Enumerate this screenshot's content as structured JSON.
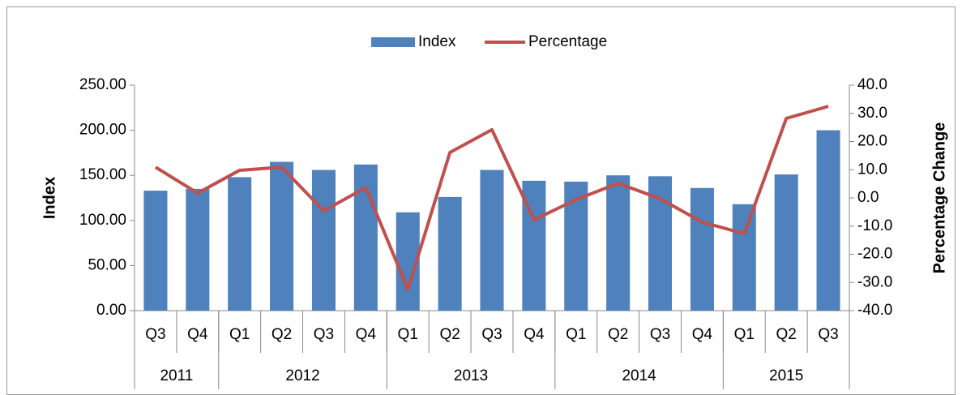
{
  "chart_data": {
    "type": "bar-line",
    "y_label": "Index",
    "y2_label": "Percentage Change",
    "categories": [
      "Q3",
      "Q4",
      "Q1",
      "Q2",
      "Q3",
      "Q4",
      "Q1",
      "Q2",
      "Q3",
      "Q4",
      "Q1",
      "Q2",
      "Q3",
      "Q4",
      "Q1",
      "Q2",
      "Q3"
    ],
    "groups": [
      {
        "label": "2011",
        "count": 2
      },
      {
        "label": "2012",
        "count": 4
      },
      {
        "label": "2013",
        "count": 4
      },
      {
        "label": "2014",
        "count": 4
      },
      {
        "label": "2015",
        "count": 3
      }
    ],
    "series": [
      {
        "name": "Index",
        "type": "bar",
        "color": "#4f81bd",
        "values": [
          133,
          135,
          148,
          165,
          156,
          162,
          109,
          126,
          156,
          144,
          143,
          150,
          149,
          136,
          118,
          151,
          200
        ]
      },
      {
        "name": "Percentage",
        "type": "line",
        "axis": "y2",
        "color": "#c0504d",
        "values": [
          10.9,
          1.7,
          9.8,
          10.9,
          -4.6,
          3.7,
          -32.5,
          16.1,
          24.2,
          -7.8,
          -0.6,
          5.2,
          -0.3,
          -8.6,
          -12.7,
          28.2,
          32.5
        ]
      }
    ],
    "ylim": [
      0,
      250
    ],
    "yticks": [
      {
        "value": 0,
        "label": "0.00"
      },
      {
        "value": 50,
        "label": "50.00"
      },
      {
        "value": 100,
        "label": "100.00"
      },
      {
        "value": 150,
        "label": "150.00"
      },
      {
        "value": 200,
        "label": "200.00"
      },
      {
        "value": 250,
        "label": "250.00"
      }
    ],
    "y2lim": [
      -40,
      40
    ],
    "y2ticks": [
      {
        "value": -40,
        "label": "-40.0"
      },
      {
        "value": -30,
        "label": "-30.0"
      },
      {
        "value": -20,
        "label": "-20.0"
      },
      {
        "value": -10,
        "label": "-10.0"
      },
      {
        "value": 0,
        "label": "0.0"
      },
      {
        "value": 10,
        "label": "10.0"
      },
      {
        "value": 20,
        "label": "20.0"
      },
      {
        "value": 30,
        "label": "30.0"
      },
      {
        "value": 40,
        "label": "40.0"
      }
    ],
    "legend": "top"
  }
}
